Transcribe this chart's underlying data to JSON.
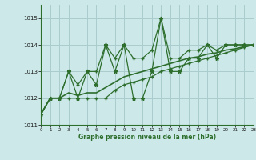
{
  "title": "Graphe pression niveau de la mer (hPa)",
  "background_color": "#cce8e8",
  "plot_bg_color": "#cce8e8",
  "grid_color": "#aacccc",
  "line_color": "#2d6e2d",
  "x_values": [
    0,
    1,
    2,
    3,
    4,
    5,
    6,
    7,
    8,
    9,
    10,
    11,
    12,
    13,
    14,
    15,
    16,
    17,
    18,
    19,
    20,
    21,
    22,
    23
  ],
  "y_main": [
    1011.4,
    1012.0,
    1012.0,
    1013.0,
    1012.0,
    1013.0,
    1012.5,
    1014.0,
    1013.0,
    1014.0,
    1012.0,
    1012.0,
    1013.0,
    1015.0,
    1013.0,
    1013.0,
    1013.5,
    1013.5,
    1014.0,
    1013.5,
    1014.0,
    1014.0,
    1014.0,
    1014.0
  ],
  "y_min": [
    1011.4,
    1012.0,
    1012.0,
    1012.0,
    1012.0,
    1012.0,
    1012.0,
    1012.0,
    1012.3,
    1012.5,
    1012.6,
    1012.7,
    1012.8,
    1013.0,
    1013.1,
    1013.2,
    1013.3,
    1013.4,
    1013.5,
    1013.6,
    1013.7,
    1013.8,
    1013.9,
    1014.0
  ],
  "y_max": [
    1011.4,
    1012.0,
    1012.0,
    1013.0,
    1012.5,
    1013.0,
    1013.0,
    1014.0,
    1013.5,
    1014.0,
    1013.5,
    1013.5,
    1013.8,
    1015.0,
    1013.5,
    1013.5,
    1013.8,
    1013.8,
    1014.0,
    1013.8,
    1014.0,
    1014.0,
    1014.0,
    1014.0
  ],
  "y_avg": [
    1011.4,
    1012.0,
    1012.0,
    1012.2,
    1012.1,
    1012.2,
    1012.2,
    1012.4,
    1012.6,
    1012.8,
    1012.9,
    1013.0,
    1013.1,
    1013.2,
    1013.3,
    1013.4,
    1013.5,
    1013.55,
    1013.65,
    1013.7,
    1013.8,
    1013.85,
    1013.93,
    1014.0
  ],
  "ylim": [
    1011.0,
    1015.5
  ],
  "yticks": [
    1011,
    1012,
    1013,
    1014,
    1015
  ],
  "xlim": [
    0,
    23
  ],
  "xticks": [
    0,
    1,
    2,
    3,
    4,
    5,
    6,
    7,
    8,
    9,
    10,
    11,
    12,
    13,
    14,
    15,
    16,
    17,
    18,
    19,
    20,
    21,
    22,
    23
  ]
}
